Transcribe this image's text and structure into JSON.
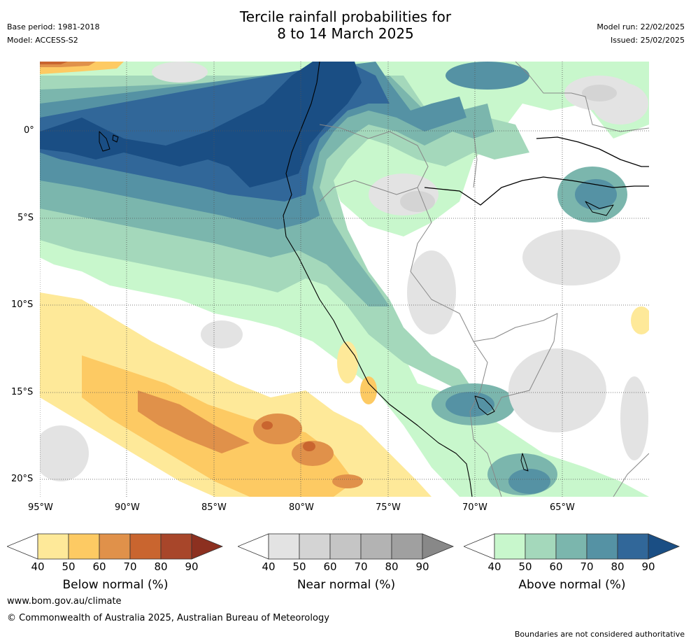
{
  "header": {
    "title_line1": "Tercile rainfall probabilities for",
    "title_line2": "8 to 14 March 2025",
    "base_period": "Base period: 1981-2018",
    "model": "Model: ACCESS-S2",
    "model_run": "Model run: 22/02/2025",
    "issued": "Issued: 25/02/2025"
  },
  "map": {
    "lat_labels": [
      "0°",
      "5°S",
      "10°S",
      "15°S",
      "20°S"
    ],
    "lon_labels": [
      "95°W",
      "90°W",
      "85°W",
      "80°W",
      "75°W",
      "70°W",
      "65°W"
    ]
  },
  "colorbars": [
    {
      "label": "Below normal (%)",
      "ticks": [
        "40",
        "50",
        "60",
        "70",
        "80",
        "90"
      ],
      "colors": [
        "#fee999",
        "#fdca63",
        "#e0914a",
        "#c9652f",
        "#a8462a"
      ],
      "over_color": "#8c3020"
    },
    {
      "label": "Near normal (%)",
      "ticks": [
        "40",
        "50",
        "60",
        "70",
        "80",
        "90"
      ],
      "colors": [
        "#e3e3e3",
        "#d4d4d4",
        "#c5c5c5",
        "#b3b3b3",
        "#a0a0a0"
      ],
      "over_color": "#888888"
    },
    {
      "label": "Above normal (%)",
      "ticks": [
        "40",
        "50",
        "60",
        "70",
        "80",
        "90"
      ],
      "colors": [
        "#c8f7cc",
        "#a4d8bb",
        "#7bb6ad",
        "#5592a4",
        "#316799"
      ],
      "over_color": "#1a4e84"
    }
  ],
  "footer": {
    "website": "www.bom.gov.au/climate",
    "copyright": "© Commonwealth of Australia 2025, Australian Bureau of Meteorology",
    "disclaimer": "Boundaries are not considered authoritative"
  }
}
